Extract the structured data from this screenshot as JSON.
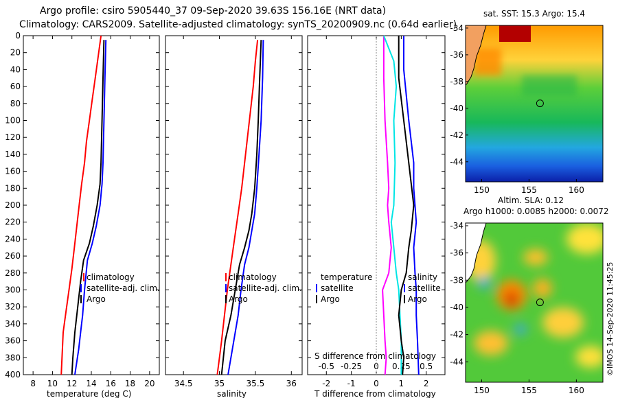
{
  "title_line1": "Argo profile: csiro 5905440_37 09-Sep-2020 39.63S 156.16E (NRT data)",
  "title_line2": "Climatology: CARS2009. Satellite-adjusted climatology: synTS_20200909.nc (0.64d earlier)",
  "map_top_title": "sat. SST: 15.3 Argo: 15.4",
  "map_bottom_title1": "Altim. SLA: 0.12",
  "map_bottom_title2": "Argo h1000: 0.0085 h2000: 0.0072",
  "copyright": "©IMOS 14-Sep-2020 11:45:25",
  "colors": {
    "climatology": "#ff0000",
    "satellite": "#0000ff",
    "argo": "#000000",
    "temp_diff": "#ff00ff",
    "sal_diff": "#00e5e5"
  },
  "chart_data": [
    {
      "type": "line",
      "name": "temperature",
      "xlabel": "temperature (deg C)",
      "ylabel": "",
      "xlim": [
        7,
        21
      ],
      "ylim": [
        400,
        0
      ],
      "xticks": [
        8,
        10,
        12,
        14,
        16,
        18,
        20
      ],
      "yticks": [
        0,
        20,
        40,
        60,
        80,
        100,
        120,
        140,
        160,
        180,
        200,
        220,
        240,
        260,
        280,
        300,
        320,
        340,
        360,
        380,
        400
      ],
      "legend": [
        "climatology",
        "satellite-adj. clim.",
        "Argo"
      ],
      "series": [
        {
          "name": "climatology",
          "color": "#ff0000",
          "x": [
            15,
            14.7,
            14.4,
            14.1,
            13.8,
            13.5,
            13.3,
            13,
            12.75,
            12.5,
            12.25,
            12,
            11.7,
            11.4,
            11.1,
            10.9
          ],
          "y": [
            0,
            25,
            50,
            75,
            100,
            125,
            150,
            175,
            200,
            225,
            250,
            275,
            300,
            325,
            350,
            400
          ]
        },
        {
          "name": "satellite-adj. clim.",
          "color": "#0000ff",
          "x": [
            15.5,
            15.4,
            15.3,
            15.2,
            15.1,
            14.9,
            14.5,
            14.1,
            13.6,
            13.3,
            13.1,
            12.9,
            12.7,
            12.3
          ],
          "y": [
            5,
            50,
            100,
            150,
            175,
            200,
            225,
            245,
            265,
            300,
            330,
            350,
            370,
            400
          ]
        },
        {
          "name": "Argo",
          "color": "#000000",
          "x": [
            15.3,
            15.2,
            15.1,
            15,
            14.9,
            14.6,
            14.2,
            13.8,
            13.2,
            12.9,
            12.6,
            12.3,
            12.1,
            12
          ],
          "y": [
            5,
            50,
            100,
            150,
            175,
            200,
            225,
            245,
            265,
            290,
            320,
            350,
            380,
            400
          ]
        }
      ]
    },
    {
      "type": "line",
      "name": "salinity",
      "xlabel": "salinity",
      "ylabel": "",
      "xlim": [
        34.25,
        36.15
      ],
      "ylim": [
        400,
        0
      ],
      "xticks": [
        34.5,
        35,
        35.5,
        36
      ],
      "legend": [
        "climatology",
        "satellite-adj. clim.",
        "Argo"
      ],
      "series": [
        {
          "name": "climatology",
          "color": "#ff0000",
          "x": [
            35.53,
            35.5,
            35.47,
            35.43,
            35.39,
            35.35,
            35.31,
            35.26,
            35.21,
            35.16,
            35.11,
            35.07,
            35.03,
            35,
            34.97
          ],
          "y": [
            5,
            30,
            60,
            90,
            120,
            150,
            180,
            210,
            240,
            270,
            300,
            330,
            360,
            380,
            400
          ]
        },
        {
          "name": "satellite-adj. clim.",
          "color": "#0000ff",
          "x": [
            35.61,
            35.6,
            35.58,
            35.55,
            35.52,
            35.49,
            35.45,
            35.41,
            35.35,
            35.3,
            35.26,
            35.2,
            35.12
          ],
          "y": [
            5,
            50,
            100,
            140,
            180,
            210,
            230,
            250,
            270,
            300,
            330,
            360,
            400
          ]
        },
        {
          "name": "Argo",
          "color": "#000000",
          "x": [
            35.58,
            35.56,
            35.54,
            35.52,
            35.49,
            35.45,
            35.41,
            35.35,
            35.28,
            35.22,
            35.16,
            35.08,
            35.03
          ],
          "y": [
            5,
            50,
            100,
            140,
            180,
            210,
            230,
            250,
            270,
            300,
            330,
            360,
            400
          ]
        }
      ]
    },
    {
      "type": "line",
      "name": "difference from climatology",
      "xlabel": "T difference from climatology",
      "xlabel_top": "S difference from climatology",
      "ylabel": "",
      "xlim": [
        -2.75,
        2.75
      ],
      "ylim": [
        400,
        0
      ],
      "xticks": [
        -2,
        -1,
        0,
        1,
        2
      ],
      "xticks_s": [
        "-0.5",
        "-0.25",
        "0",
        "0.25",
        "0.5"
      ],
      "legend_left_title": "temperature",
      "legend_right_title": "salinity",
      "legend": [
        "satellite",
        "Argo"
      ],
      "series": [
        {
          "name": "temperature satellite",
          "color": "#ff00ff",
          "x": [
            0.3,
            0.3,
            0.35,
            0.45,
            0.5,
            0.45,
            0.5,
            0.6,
            0.5,
            0.25,
            0.3,
            0.35,
            0.4,
            0.35
          ],
          "y": [
            0,
            50,
            100,
            150,
            180,
            200,
            220,
            250,
            280,
            300,
            330,
            360,
            380,
            400
          ]
        },
        {
          "name": "salinity satellite",
          "color": "#00e5e5",
          "x": [
            0.3,
            0.7,
            0.8,
            0.7,
            0.75,
            0.7,
            0.6,
            0.7,
            0.8,
            0.9,
            0.95,
            1,
            1
          ],
          "y": [
            0,
            30,
            60,
            100,
            150,
            200,
            220,
            250,
            280,
            300,
            330,
            360,
            400
          ]
        },
        {
          "name": "temperature Argo",
          "color": "#000000",
          "x": [
            0.9,
            0.9,
            1.1,
            1.3,
            1.5,
            1.4,
            1.3,
            1.2,
            1,
            0.9,
            1,
            1.1,
            1.05
          ],
          "y": [
            0,
            50,
            100,
            150,
            200,
            230,
            250,
            280,
            300,
            330,
            360,
            380,
            400
          ]
        },
        {
          "name": "salinity Argo",
          "color": "#0000ff",
          "x": [
            1.1,
            1.1,
            1.3,
            1.5,
            1.5,
            1.6,
            1.5,
            1.55,
            1.6,
            1.6,
            1.65,
            1.7
          ],
          "y": [
            0,
            40,
            100,
            150,
            180,
            220,
            250,
            280,
            300,
            330,
            360,
            400
          ]
        }
      ]
    },
    {
      "type": "heatmap",
      "name": "sat. SST map",
      "xticks": [
        150,
        155,
        160
      ],
      "yticks": [
        -34,
        -36,
        -38,
        -40,
        -42,
        -44
      ],
      "xlim": [
        148.3,
        162.8
      ],
      "ylim": [
        -45.5,
        -33.8
      ],
      "marker": {
        "lon": 156.16,
        "lat": -39.63
      }
    },
    {
      "type": "heatmap",
      "name": "Altim. SLA map",
      "xticks": [
        150,
        155,
        160
      ],
      "yticks": [
        -34,
        -36,
        -38,
        -40,
        -42,
        -44
      ],
      "xlim": [
        148.3,
        162.8
      ],
      "ylim": [
        -45.5,
        -33.8
      ],
      "marker": {
        "lon": 156.16,
        "lat": -39.63
      }
    }
  ]
}
